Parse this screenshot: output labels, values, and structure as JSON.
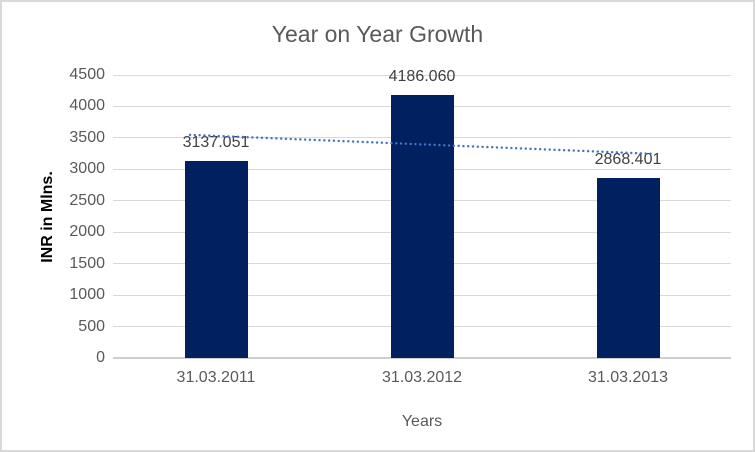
{
  "chart_data": {
    "type": "bar",
    "title": "Year on Year Growth",
    "xlabel": "Years",
    "ylabel": "INR in Mlns.",
    "categories": [
      "31.03.2011",
      "31.03.2012",
      "31.03.2013"
    ],
    "values": [
      3137.051,
      4186.06,
      2868.401
    ],
    "data_labels": [
      "3137.051",
      "4186.060",
      "2868.401"
    ],
    "ylim": [
      0,
      4500
    ],
    "ytick_step": 500,
    "ytick_labels": [
      "0",
      "500",
      "1000",
      "1500",
      "2000",
      "2500",
      "3000",
      "3500",
      "4000",
      "4500"
    ],
    "grid": true,
    "legend": "none",
    "bar_color": "#002060",
    "trendline": {
      "type": "linear",
      "style": "dotted",
      "color": "#4472C4"
    },
    "colors": {
      "background": "#ffffff",
      "border": "#d9d9d9",
      "gridline": "#d9d9d9",
      "axis_line": "#cfcfcf",
      "title_text": "#595959",
      "tick_text": "#595959",
      "data_label_text": "#404040",
      "ylabel_text": "#000000"
    }
  }
}
